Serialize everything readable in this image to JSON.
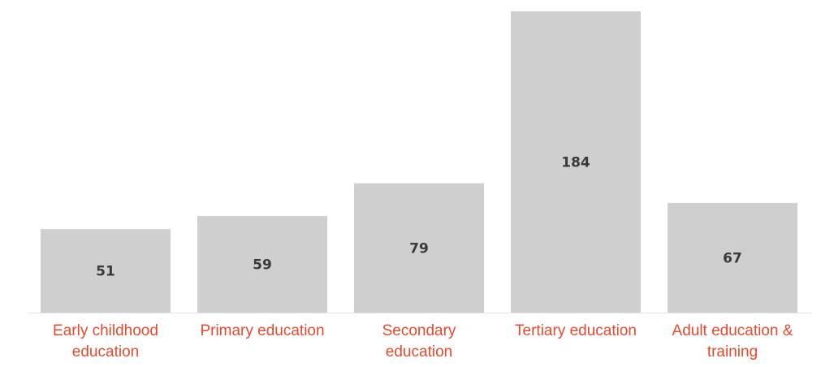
{
  "chart_data": {
    "type": "bar",
    "categories": [
      [
        "Early childhood",
        "education"
      ],
      [
        "Primary education"
      ],
      [
        "Secondary",
        "education"
      ],
      [
        "Tertiary education"
      ],
      [
        "Adult education &",
        "training"
      ]
    ],
    "values": [
      51,
      59,
      79,
      184,
      67
    ],
    "data_labels": [
      "51",
      "59",
      "79",
      "184",
      "67"
    ],
    "title": "",
    "xlabel": "",
    "ylabel": "",
    "ylim": [
      0,
      184
    ],
    "grid": false,
    "legend": "none",
    "colors": {
      "bar": "#d0cfcf",
      "value_text": "#3a3a3a",
      "category_text": "#e8492d",
      "baseline": "#e3e3e3"
    }
  }
}
